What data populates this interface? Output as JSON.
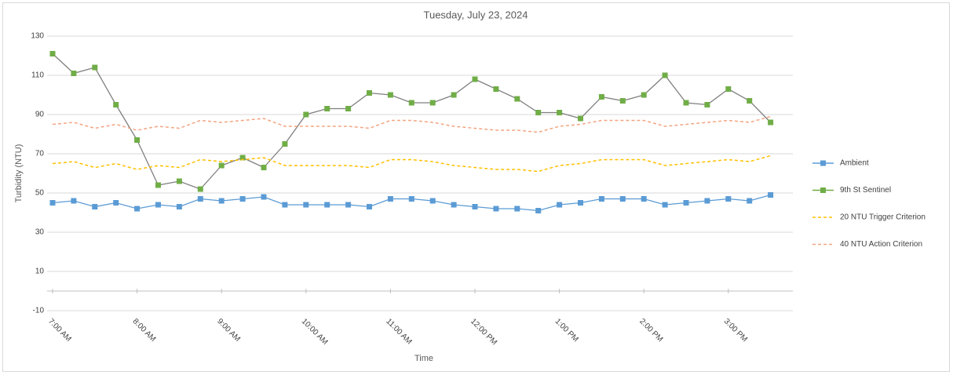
{
  "chart_data": {
    "type": "line",
    "title": "Tuesday, July 23, 2024",
    "xlabel": "Time",
    "ylabel": "Turbidity (NTU)",
    "categories": [
      "7:00 AM",
      null,
      null,
      null,
      "8:00 AM",
      null,
      null,
      null,
      "9:00 AM",
      null,
      null,
      null,
      "10:00 AM",
      null,
      null,
      null,
      "11:00 AM",
      null,
      null,
      null,
      "12:00 PM",
      null,
      null,
      null,
      "1:00 PM",
      null,
      null,
      null,
      "2:00 PM",
      null,
      null,
      null,
      "3:00 PM",
      null,
      null
    ],
    "ylim": [
      -10,
      130
    ],
    "yticks": [
      -10,
      10,
      30,
      50,
      70,
      90,
      110,
      130
    ],
    "grid": true,
    "legend": "right",
    "series": [
      {
        "name": "Ambient",
        "color": "#5b9bd5",
        "marker": "square",
        "dashed": false,
        "values": [
          45,
          46,
          43,
          45,
          42,
          44,
          43,
          47,
          46,
          47,
          48,
          44,
          44,
          44,
          44,
          43,
          47,
          47,
          46,
          44,
          43,
          42,
          42,
          41,
          44,
          45,
          47,
          47,
          47,
          44,
          45,
          46,
          47,
          46,
          49
        ]
      },
      {
        "name": "9th St Sentinel",
        "color": "#70ad47",
        "marker": "square",
        "dashed": false,
        "values": [
          121,
          111,
          114,
          95,
          77,
          54,
          56,
          52,
          64,
          68,
          63,
          75,
          90,
          93,
          93,
          101,
          100,
          96,
          96,
          100,
          108,
          103,
          98,
          91,
          91,
          88,
          99,
          97,
          100,
          110,
          96,
          95,
          103,
          97,
          86
        ]
      },
      {
        "name": "20 NTU Trigger Criterion",
        "color": "#ffc000",
        "marker": "none",
        "dashed": true,
        "values": [
          65,
          66,
          63,
          65,
          62,
          64,
          63,
          67,
          66,
          67,
          68,
          64,
          64,
          64,
          64,
          63,
          67,
          67,
          66,
          64,
          63,
          62,
          62,
          61,
          64,
          65,
          67,
          67,
          67,
          64,
          65,
          66,
          67,
          66,
          69
        ]
      },
      {
        "name": "40 NTU Action Criterion",
        "color": "#f4a582",
        "marker": "none",
        "dashed": true,
        "values": [
          85,
          86,
          83,
          85,
          82,
          84,
          83,
          87,
          86,
          87,
          88,
          84,
          84,
          84,
          84,
          83,
          87,
          87,
          86,
          84,
          83,
          82,
          82,
          81,
          84,
          85,
          87,
          87,
          87,
          84,
          85,
          86,
          87,
          86,
          89
        ]
      }
    ]
  }
}
